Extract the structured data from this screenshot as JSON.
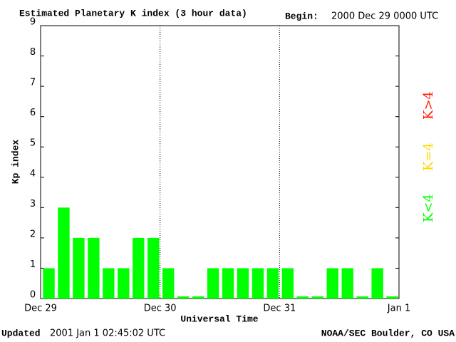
{
  "chart_data": {
    "type": "bar",
    "title": "Estimated Planetary K index (3 hour data)",
    "begin_label": "Begin:",
    "begin_value": "2000 Dec 29 0000 UTC",
    "ylabel": "Kp index",
    "xlabel": "Universal Time",
    "updated_label": "Updated",
    "updated_value": "2001 Jan  1 02:45:02 UTC",
    "credit": "NOAA/SEC Boulder, CO USA",
    "x": [
      0,
      3,
      6,
      9,
      12,
      15,
      18,
      21,
      24,
      27,
      30,
      33,
      36,
      39,
      42,
      45,
      48,
      51,
      54,
      57,
      60,
      63,
      66,
      69
    ],
    "values": [
      1,
      3,
      2,
      2,
      1,
      1,
      2,
      2,
      1,
      0,
      0,
      1,
      1,
      1,
      1,
      1,
      1,
      0,
      0,
      1,
      1,
      0,
      1,
      0
    ],
    "color": "#00ff00",
    "xlim": [
      0,
      72
    ],
    "xticks": [
      {
        "value": 0,
        "label": "Dec 29"
      },
      {
        "value": 24,
        "label": "Dec 30"
      },
      {
        "value": 48,
        "label": "Dec 31"
      },
      {
        "value": 72,
        "label": "Jan 1"
      }
    ],
    "ylim": [
      0,
      9
    ],
    "yticks": [
      0,
      1,
      2,
      3,
      4,
      5,
      6,
      7,
      8,
      9
    ],
    "legend": [
      {
        "name": "K>4",
        "color": "#ff2000"
      },
      {
        "name": "K=4",
        "color": "#ffd700"
      },
      {
        "name": "K<4",
        "color": "#00ff00"
      }
    ]
  }
}
